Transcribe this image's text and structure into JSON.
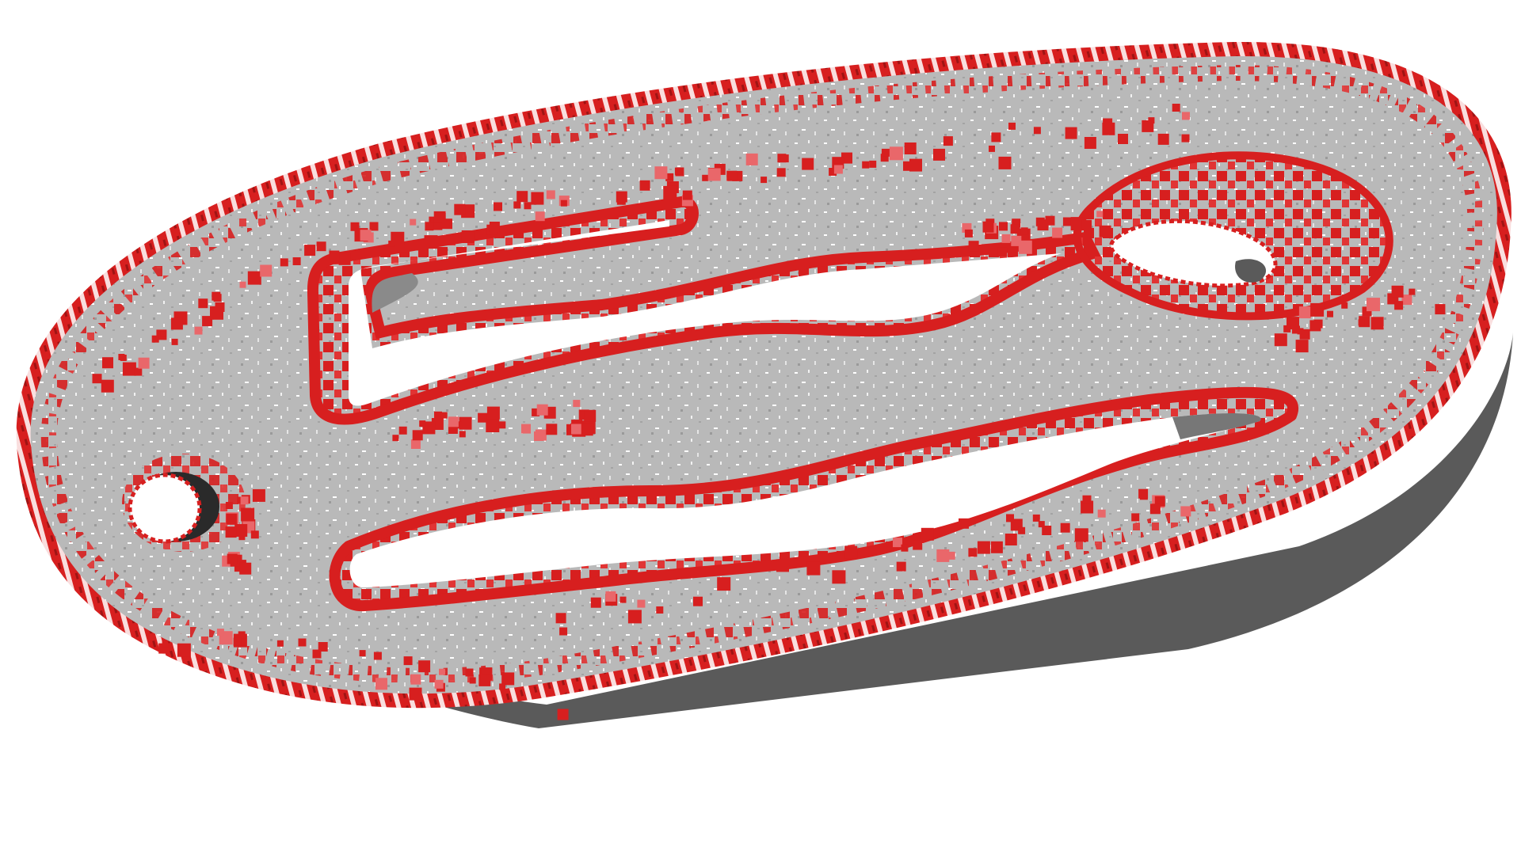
{
  "scene": {
    "subject": "voxel-plate-with-slots",
    "colors": {
      "background": "#ffffff",
      "body": "#b9b9b9",
      "body_shadow": "#7f7f7f",
      "body_dark": "#2e2e2e",
      "edge_red": "#d71f1f",
      "edge_red_light": "#e9676a",
      "hole": "#ffffff"
    }
  }
}
